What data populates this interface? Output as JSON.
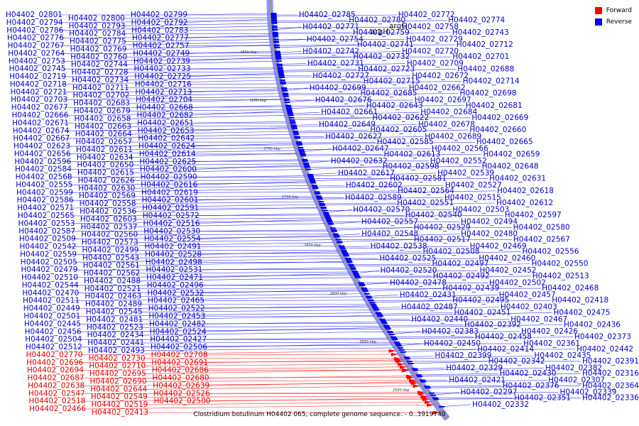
{
  "caption": "Clostridium botulinum H04402 065, complete genome sequence. - 0..3919740",
  "legend": [
    {
      "label": "Forward",
      "color": "#ff0000"
    },
    {
      "label": "Reverse",
      "color": "#0000ff"
    }
  ],
  "colors": {
    "forward": "#ff0000",
    "reverse": "#0000ff",
    "label_forward": "#dd0000",
    "label_reverse": "#0000cc",
    "backbone": "#999999"
  },
  "gene_names": [
    "argH",
    "argG"
  ],
  "ruler_ticks": [
    "2850 kbp",
    "2800 kbp",
    "2750 kbp",
    "2700 kbp",
    "2650 kbp",
    "2600 kbp",
    "2550 kbp",
    "2500 kbp"
  ],
  "labels_forward": [
    "H04402_02770",
    "H04402_02730",
    "H04402_02708",
    "H04402_02696",
    "H04402_02710",
    "H04402_02691",
    "H04402_02694",
    "H04402_02695",
    "H04402_02686",
    "H04402_02687",
    "H04402_02690",
    "H04402_02680",
    "H04402_02638",
    "H04402_02644",
    "H04402_02639",
    "H04402_02547",
    "H04402_02549",
    "H04402_02526",
    "H04402_02518",
    "H04402_02519",
    "H04402_02500",
    "H04402_02466",
    "H04402_02413"
  ],
  "left_labels_reverse": [
    "H04402_02801",
    "H04402_02800",
    "H04402_02799",
    "H04402_02794",
    "H04402_02793",
    "H04402_02792",
    "H04402_02786",
    "H04402_02784",
    "H04402_02783",
    "H04402_02776",
    "H04402_02775",
    "H04402_02777",
    "H04402_02767",
    "H04402_02769",
    "H04402_02757",
    "H04402_02764",
    "H04402_02760",
    "H04402_02749",
    "H04402_02753",
    "H04402_02744",
    "H04402_02739",
    "H04402_02745",
    "H04402_02728",
    "H04402_02733",
    "H04402_02719",
    "H04402_02734",
    "H04402_02725",
    "H04402_02718",
    "H04402_02711",
    "H04402_02716",
    "H04402_02721",
    "H04402_02702",
    "H04402_02713",
    "H04402_02703",
    "H04402_02683",
    "H04402_02704",
    "H04402_02677",
    "H04402_02679",
    "H04402_02668",
    "H04402_02666",
    "H04402_02658",
    "H04402_02682",
    "H04402_02671",
    "H04402_02663",
    "H04402_02651",
    "H04402_02674",
    "H04402_02664",
    "H04402_02653",
    "H04402_02667",
    "H04402_02657",
    "H04402_02642",
    "H04402_02623",
    "H04402_02611",
    "H04402_02624",
    "H04402_02656",
    "H04402_02634",
    "H04402_02614",
    "H04402_02596",
    "H04402_02650",
    "H04402_02625",
    "H04402_02584",
    "H04402_02615",
    "H04402_02600",
    "H04402_02568",
    "H04402_02626",
    "H04402_02590",
    "H04402_02555",
    "H04402_02630",
    "H04402_02616",
    "H04402_02599",
    "H04402_02569",
    "H04402_02619",
    "H04402_02586",
    "H04402_02558",
    "H04402_02601",
    "H04402_02571",
    "H04402_02536",
    "H04402_02591",
    "H04402_02565",
    "H04402_02603",
    "H04402_02572",
    "H04402_02553",
    "H04402_02537",
    "H04402_02516",
    "H04402_02587",
    "H04402_02560",
    "H04402_02530",
    "H04402_02509",
    "H04402_02573",
    "H04402_02554",
    "H04402_02542",
    "H04402_02499",
    "H04402_02491",
    "H04402_02559",
    "H04402_02543",
    "H04402_02528",
    "H04402_02505",
    "H04402_02561",
    "H04402_02498",
    "H04402_02479",
    "H04402_02562",
    "H04402_02531",
    "H04402_02510",
    "H04402_02488",
    "H04402_02471",
    "H04402_02544",
    "H04402_02521",
    "H04402_02496",
    "H04402_02470",
    "H04402_02463",
    "H04402_02532",
    "H04402_02511",
    "H04402_02489",
    "H04402_02465",
    "H04402_02449",
    "H04402_02545",
    "H04402_02522",
    "H04402_02501",
    "H04402_02481",
    "H04402_02453",
    "H04402_02445",
    "H04402_02523",
    "H04402_02482",
    "H04402_02456",
    "H04402_02434",
    "H04402_02524",
    "H04402_02504",
    "H04402_02441",
    "H04402_02427",
    "H04402_02512",
    "H04402_02493",
    "H04402_02506"
  ],
  "right_labels_reverse": [
    "H04402_02785",
    "H04402_02780",
    "H04402_02772",
    "H04402_02774",
    "H04402_02771",
    "H04402_02759",
    "H04402_02758",
    "H04402_02743",
    "H04402_02754",
    "H04402_02741",
    "H04402_02729",
    "H04402_02712",
    "H04402_02742",
    "H04402_02732",
    "H04402_02720",
    "H04402_02701",
    "H04402_02731",
    "H04402_02723",
    "H04402_02709",
    "H04402_02688",
    "H04402_02727",
    "H04402_02715",
    "H04402_02672",
    "H04402_02714",
    "H04402_02699",
    "H04402_02685",
    "H04402_02662",
    "H04402_02698",
    "H04402_02676",
    "H04402_02643",
    "H04402_02697",
    "H04402_02681",
    "H04402_02661",
    "H04402_02622",
    "H04402_02684",
    "H04402_02669",
    "H04402_02649",
    "H04402_02605",
    "H04402_02678",
    "H04402_02660",
    "H04402_02627",
    "H04402_02585",
    "H04402_02689",
    "H04402_02665",
    "H04402_02647",
    "H04402_02613",
    "H04402_02566",
    "H04402_02659",
    "H04402_02632",
    "H04402_02598",
    "H04402_02552",
    "H04402_02648",
    "H04402_02617",
    "H04402_02581",
    "H04402_02539",
    "H04402_02631",
    "H04402_02602",
    "H04402_02564",
    "H04402_02527",
    "H04402_02618",
    "H04402_02589",
    "H04402_02551",
    "H04402_02515",
    "H04402_02612",
    "H04402_02570",
    "H04402_02540",
    "H04402_02503",
    "H04402_02597",
    "H04402_02557",
    "H04402_02529",
    "H04402_02494",
    "H04402_02580",
    "H04402_02548",
    "H04402_02517",
    "H04402_02480",
    "H04402_02567",
    "H04402_02538",
    "H04402_02508",
    "H04402_02469",
    "H04402_02556",
    "H04402_02525",
    "H04402_02497",
    "H04402_02460",
    "H04402_02550",
    "H04402_02520",
    "H04402_02492",
    "H04402_02452",
    "H04402_02513",
    "H04402_02478",
    "H04402_02439",
    "H04402_02502",
    "H04402_02468",
    "H04402_02431",
    "H04402_02495",
    "H04402_02457",
    "H04402_02418",
    "H04402_02487",
    "H04402_02451",
    "H04402_02403",
    "H04402_02475",
    "H04402_02440",
    "H04402_02392",
    "H04402_02467",
    "H04402_02436",
    "H04402_02383",
    "H04402_02458",
    "H04402_02426",
    "H04402_02373",
    "H04402_02450",
    "H04402_02414",
    "H04402_02361",
    "H04402_02442",
    "H04402_02399",
    "H04402_02342",
    "H04402_02435",
    "H04402_02391",
    "H04402_02329",
    "H04402_02430",
    "H04402_02382",
    "H04402_02316",
    "H04402_02421",
    "H04402_02376",
    "H04402_02307",
    "H04402_02364",
    "H04402_02297",
    "H04402_02351",
    "H04402_02339",
    "H04402_02336",
    "H04402_02332"
  ]
}
